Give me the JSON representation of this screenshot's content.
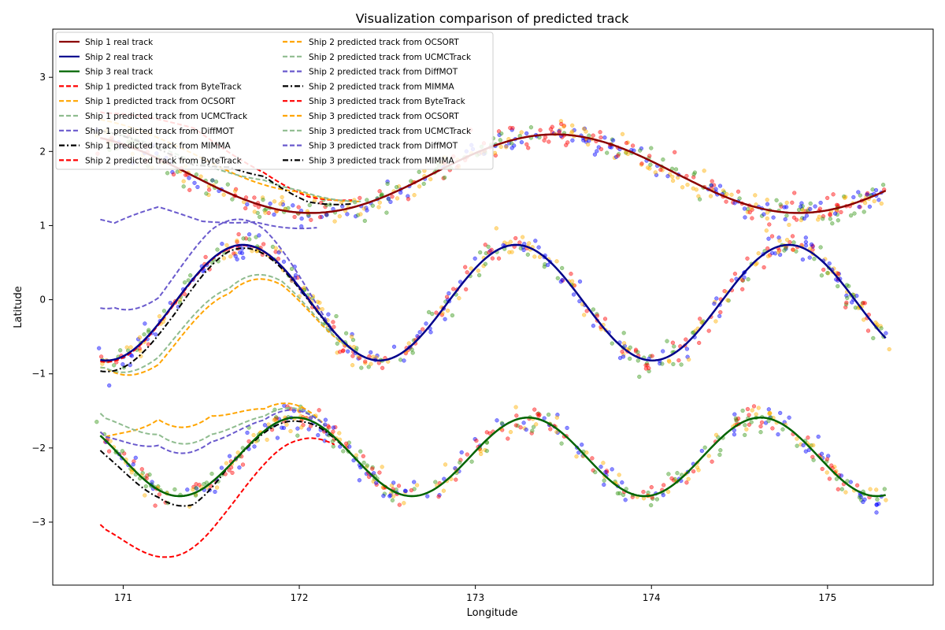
{
  "chart_data": {
    "type": "line",
    "title": "Visualization comparison of predicted track",
    "xlabel": "Longitude",
    "ylabel": "Latitude",
    "xlim": [
      170.6,
      175.6
    ],
    "ylim": [
      -3.85,
      3.65
    ],
    "xticks": [
      171,
      172,
      173,
      174,
      175
    ],
    "yticks": [
      -3,
      -2,
      -1,
      0,
      1,
      2,
      3
    ],
    "x_start": 170.87,
    "x_end": 175.33,
    "grid": false,
    "legend_placement": "top-left",
    "legend_columns": 2,
    "scatter_colors": [
      "#ff0000",
      "#0000ff",
      "#ffb000",
      "#3a9a1a"
    ],
    "ships": [
      {
        "name": "Ship 1",
        "center": 1.7,
        "amplitude": 0.53,
        "period": 2.77,
        "x_peak": 173.45,
        "color": "#8b0000"
      },
      {
        "name": "Ship 2",
        "center": -0.04,
        "amplitude": 0.78,
        "period": 1.55,
        "x_peak": 173.23,
        "color": "#00008b"
      },
      {
        "name": "Ship 3",
        "center": -2.12,
        "amplitude": 0.53,
        "period": 1.32,
        "x_peak": 173.3,
        "color": "#006400"
      }
    ],
    "series": [
      {
        "name": "Ship 1 real track",
        "ship": 0,
        "style": "solid",
        "color": "#8b0000",
        "offset": [
          [
            0,
            0
          ]
        ]
      },
      {
        "name": "Ship 2 real track",
        "ship": 1,
        "style": "solid",
        "color": "#00008b",
        "offset": [
          [
            0,
            0
          ]
        ]
      },
      {
        "name": "Ship 3 real track",
        "ship": 2,
        "style": "solid",
        "color": "#006400",
        "offset": [
          [
            0,
            0
          ]
        ]
      },
      {
        "name": "Ship 1 predicted track from ByteTrack",
        "ship": 0,
        "style": "dashed",
        "color": "#ff0000",
        "x_max": 172.3,
        "offset": [
          [
            170.9,
            0.35
          ],
          [
            171.4,
            0.65
          ],
          [
            171.8,
            0.45
          ],
          [
            172.05,
            0.22
          ],
          [
            172.3,
            0.1
          ]
        ]
      },
      {
        "name": "Ship 1 predicted track from OCSORT",
        "ship": 0,
        "style": "dashed",
        "color": "#ffa500",
        "x_max": 172.35,
        "offset": [
          [
            170.9,
            0.25
          ],
          [
            171.4,
            0.3
          ],
          [
            172.0,
            0.28
          ],
          [
            172.35,
            0.05
          ]
        ]
      },
      {
        "name": "Ship 1 predicted track from UCMCTrack",
        "ship": 0,
        "style": "dashed",
        "color": "#8fbc8f",
        "x_max": 172.35,
        "offset": [
          [
            170.9,
            0.1
          ],
          [
            171.4,
            0.2
          ],
          [
            171.8,
            0.35
          ],
          [
            172.0,
            0.3
          ],
          [
            172.35,
            0.05
          ]
        ]
      },
      {
        "name": "Ship 1 predicted track from DiffMOT",
        "ship": 0,
        "style": "dashed",
        "color": "#6a5acd",
        "x_max": 172.1,
        "offset": [
          [
            170.95,
            -1.1
          ],
          [
            171.2,
            -0.65
          ],
          [
            171.45,
            -0.55
          ],
          [
            171.75,
            -0.25
          ],
          [
            172.1,
            -0.2
          ]
        ]
      },
      {
        "name": "Ship 1 predicted track from MIMMA",
        "ship": 0,
        "style": "dashdot",
        "color": "#000000",
        "x_max": 172.3,
        "offset": [
          [
            170.9,
            0.1
          ],
          [
            171.4,
            0.15
          ],
          [
            171.6,
            0.35
          ],
          [
            171.8,
            0.4
          ],
          [
            172.05,
            0.15
          ],
          [
            172.3,
            0.05
          ]
        ]
      },
      {
        "name": "Ship 2 predicted track from ByteTrack",
        "ship": 1,
        "style": "dashed",
        "color": "#ff0000",
        "x_max": 172.3,
        "offset": [
          [
            170.9,
            -0.02
          ],
          [
            172.3,
            0.0
          ]
        ]
      },
      {
        "name": "Ship 2 predicted track from OCSORT",
        "ship": 1,
        "style": "dashed",
        "color": "#ffa500",
        "x_max": 172.3,
        "offset": [
          [
            170.9,
            -0.1
          ],
          [
            171.2,
            -0.55
          ],
          [
            171.6,
            -0.62
          ],
          [
            171.9,
            -0.25
          ],
          [
            172.3,
            0.0
          ]
        ]
      },
      {
        "name": "Ship 2 predicted track from UCMCTrack",
        "ship": 1,
        "style": "dashed",
        "color": "#8fbc8f",
        "x_max": 172.3,
        "offset": [
          [
            170.9,
            -0.1
          ],
          [
            171.2,
            -0.45
          ],
          [
            171.6,
            -0.55
          ],
          [
            171.9,
            -0.2
          ],
          [
            172.3,
            0.0
          ]
        ]
      },
      {
        "name": "Ship 2 predicted track from DiffMOT",
        "ship": 1,
        "style": "dashed",
        "color": "#6a5acd",
        "x_max": 172.2,
        "offset": [
          [
            170.95,
            0.7
          ],
          [
            171.2,
            0.35
          ],
          [
            171.5,
            0.4
          ],
          [
            171.8,
            0.3
          ],
          [
            172.2,
            0.0
          ]
        ]
      },
      {
        "name": "Ship 2 predicted track from MIMMA",
        "ship": 1,
        "style": "dashdot",
        "color": "#000000",
        "x_max": 172.3,
        "offset": [
          [
            170.9,
            -0.15
          ],
          [
            171.3,
            -0.15
          ],
          [
            171.6,
            -0.05
          ],
          [
            172.3,
            0.0
          ]
        ]
      },
      {
        "name": "Ship 3 predicted track from ByteTrack",
        "ship": 2,
        "style": "dashed",
        "color": "#ff0000",
        "x_max": 172.2,
        "offset": [
          [
            170.9,
            -1.2
          ],
          [
            171.25,
            -0.85
          ],
          [
            171.55,
            -0.6
          ],
          [
            171.8,
            -0.45
          ],
          [
            172.0,
            -0.3
          ],
          [
            172.2,
            -0.1
          ]
        ]
      },
      {
        "name": "Ship 3 predicted track from OCSORT",
        "ship": 2,
        "style": "dashed",
        "color": "#ffa500",
        "x_max": 172.15,
        "offset": [
          [
            170.9,
            0.05
          ],
          [
            171.2,
            0.95
          ],
          [
            171.5,
            0.9
          ],
          [
            171.8,
            0.3
          ],
          [
            172.15,
            0.05
          ]
        ]
      },
      {
        "name": "Ship 3 predicted track from UCMCTrack",
        "ship": 2,
        "style": "dashed",
        "color": "#8fbc8f",
        "x_max": 172.15,
        "offset": [
          [
            170.9,
            0.3
          ],
          [
            171.2,
            0.75
          ],
          [
            171.5,
            0.65
          ],
          [
            171.8,
            0.2
          ],
          [
            172.15,
            0.05
          ]
        ]
      },
      {
        "name": "Ship 3 predicted track from DiffMOT",
        "ship": 2,
        "style": "dashed",
        "color": "#6a5acd",
        "x_max": 172.15,
        "offset": [
          [
            170.9,
            0.05
          ],
          [
            171.2,
            0.6
          ],
          [
            171.5,
            0.55
          ],
          [
            171.8,
            0.15
          ],
          [
            172.15,
            0.05
          ]
        ]
      },
      {
        "name": "Ship 3 predicted track from MIMMA",
        "ship": 2,
        "style": "dashdot",
        "color": "#000000",
        "x_max": 172.3,
        "offset": [
          [
            170.9,
            -0.2
          ],
          [
            171.2,
            -0.1
          ],
          [
            171.4,
            -0.15
          ],
          [
            171.6,
            0.0
          ],
          [
            172.0,
            -0.05
          ],
          [
            172.3,
            0.0
          ]
        ]
      }
    ]
  }
}
